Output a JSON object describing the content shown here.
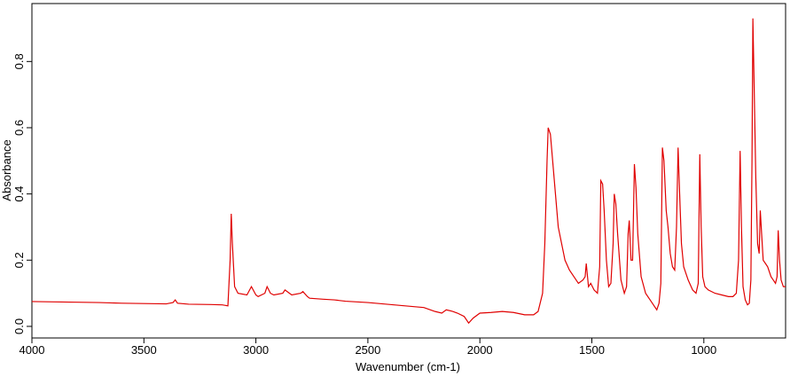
{
  "chart_data": {
    "type": "line",
    "x_label": "Wavenumber (cm-1)",
    "y_label": "Absorbance",
    "xlim": [
      4000,
      635
    ],
    "ylim": [
      -0.035,
      0.975
    ],
    "xticks": [
      4000,
      3500,
      3000,
      2500,
      2000,
      1500,
      1000
    ],
    "yticks": [
      {
        "value": 0,
        "label": "0.0"
      },
      0.2,
      0.4,
      0.6,
      0.8
    ],
    "color": "#e00000",
    "x": [
      4000,
      3900,
      3800,
      3700,
      3600,
      3500,
      3400,
      3370,
      3360,
      3350,
      3300,
      3200,
      3150,
      3125,
      3115,
      3110,
      3105,
      3095,
      3080,
      3040,
      3020,
      3000,
      2990,
      2960,
      2950,
      2935,
      2920,
      2880,
      2870,
      2850,
      2840,
      2800,
      2790,
      2770,
      2760,
      2700,
      2650,
      2600,
      2500,
      2400,
      2300,
      2250,
      2200,
      2170,
      2150,
      2120,
      2100,
      2070,
      2050,
      2030,
      2000,
      1950,
      1900,
      1850,
      1800,
      1760,
      1740,
      1720,
      1710,
      1700,
      1695,
      1685,
      1675,
      1660,
      1650,
      1635,
      1620,
      1600,
      1580,
      1560,
      1540,
      1530,
      1525,
      1515,
      1505,
      1490,
      1475,
      1465,
      1460,
      1452,
      1445,
      1435,
      1425,
      1415,
      1405,
      1400,
      1393,
      1385,
      1370,
      1355,
      1345,
      1338,
      1333,
      1325,
      1318,
      1310,
      1303,
      1295,
      1280,
      1260,
      1240,
      1220,
      1210,
      1200,
      1192,
      1185,
      1178,
      1168,
      1160,
      1150,
      1140,
      1130,
      1122,
      1115,
      1108,
      1100,
      1090,
      1080,
      1070,
      1050,
      1035,
      1025,
      1018,
      1012,
      1005,
      995,
      980,
      950,
      920,
      890,
      870,
      855,
      845,
      838,
      832,
      825,
      815,
      805,
      797,
      790,
      785,
      781,
      776,
      768,
      760,
      753,
      748,
      742,
      735,
      725,
      715,
      700,
      690,
      680,
      673,
      668,
      662,
      655,
      645,
      635
    ],
    "values": [
      0.075,
      0.074,
      0.073,
      0.072,
      0.07,
      0.069,
      0.068,
      0.072,
      0.08,
      0.07,
      0.067,
      0.066,
      0.065,
      0.062,
      0.2,
      0.34,
      0.25,
      0.12,
      0.1,
      0.095,
      0.12,
      0.095,
      0.09,
      0.1,
      0.12,
      0.1,
      0.095,
      0.1,
      0.11,
      0.1,
      0.095,
      0.1,
      0.105,
      0.09,
      0.085,
      0.082,
      0.08,
      0.076,
      0.072,
      0.066,
      0.06,
      0.057,
      0.045,
      0.04,
      0.05,
      0.045,
      0.04,
      0.03,
      0.01,
      0.025,
      0.04,
      0.042,
      0.045,
      0.042,
      0.035,
      0.035,
      0.045,
      0.1,
      0.25,
      0.5,
      0.6,
      0.58,
      0.5,
      0.38,
      0.3,
      0.25,
      0.2,
      0.17,
      0.15,
      0.13,
      0.14,
      0.15,
      0.19,
      0.12,
      0.13,
      0.11,
      0.1,
      0.18,
      0.44,
      0.43,
      0.35,
      0.2,
      0.12,
      0.13,
      0.25,
      0.4,
      0.37,
      0.28,
      0.14,
      0.1,
      0.12,
      0.28,
      0.32,
      0.2,
      0.2,
      0.49,
      0.42,
      0.28,
      0.15,
      0.1,
      0.08,
      0.06,
      0.05,
      0.07,
      0.13,
      0.54,
      0.5,
      0.35,
      0.3,
      0.22,
      0.18,
      0.17,
      0.3,
      0.54,
      0.4,
      0.25,
      0.18,
      0.16,
      0.14,
      0.11,
      0.1,
      0.13,
      0.52,
      0.3,
      0.15,
      0.12,
      0.11,
      0.1,
      0.095,
      0.09,
      0.09,
      0.1,
      0.2,
      0.53,
      0.3,
      0.12,
      0.08,
      0.065,
      0.07,
      0.14,
      0.5,
      0.93,
      0.75,
      0.45,
      0.25,
      0.22,
      0.35,
      0.28,
      0.2,
      0.19,
      0.18,
      0.15,
      0.14,
      0.13,
      0.15,
      0.29,
      0.2,
      0.14,
      0.12,
      0.12
    ]
  }
}
